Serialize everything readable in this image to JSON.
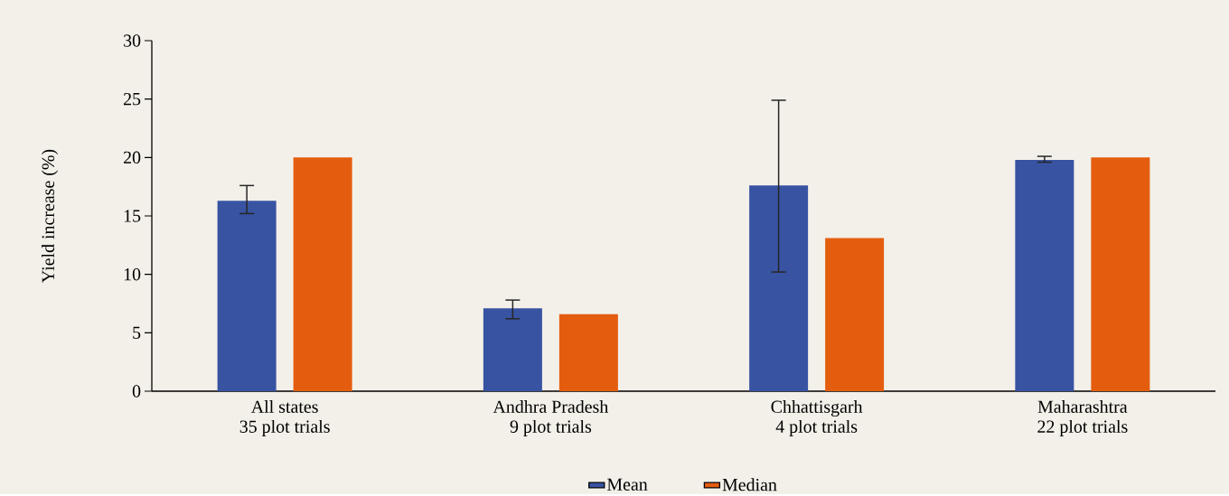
{
  "chart_data": {
    "type": "bar",
    "ylabel": "Yield increase (%)",
    "categories": [
      "All states\n35 plot trials",
      "Andhra Pradesh\n9 plot trials",
      "Chhattisgarh\n4 plot trials",
      "Maharashtra\n22 plot trials"
    ],
    "series": [
      {
        "name": "Mean",
        "color": "#3853a2",
        "values": [
          16.3,
          7.1,
          17.6,
          19.8
        ],
        "errors": [
          [
            15.2,
            17.6
          ],
          [
            6.2,
            7.8
          ],
          [
            10.2,
            24.9
          ],
          [
            19.6,
            20.1
          ]
        ]
      },
      {
        "name": "Median",
        "color": "#e45d0e",
        "values": [
          20.0,
          6.6,
          13.1,
          20.0
        ]
      }
    ],
    "ylim": [
      0,
      30
    ],
    "yticks": [
      0,
      5,
      10,
      15,
      20,
      25,
      30
    ],
    "grid": false,
    "legend": "bottom"
  }
}
